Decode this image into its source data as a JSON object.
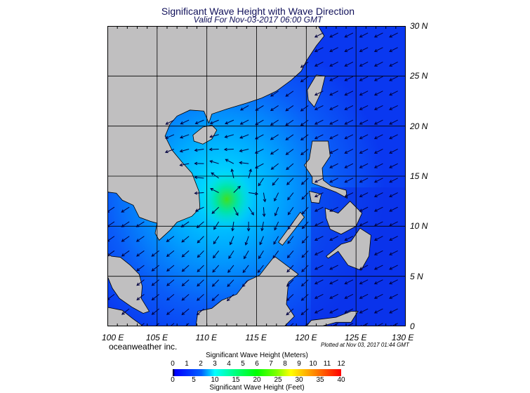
{
  "header": {
    "title": "Significant Wave Height with Wave Direction",
    "subtitle": "Valid For Nov-03-2017 06:00 GMT"
  },
  "map": {
    "lon_range": [
      100,
      130
    ],
    "lat_range": [
      0,
      30
    ],
    "lat_labels": [
      "30 N",
      "25 N",
      "20 N",
      "15 N",
      "10 N",
      "5 N",
      "0"
    ],
    "lon_labels": [
      "100 E",
      "105 E",
      "110 E",
      "115 E",
      "120 E",
      "125 E",
      "130 E"
    ],
    "colors": {
      "land": "#c0bfc0",
      "ocean_low": "#0a3cf0",
      "ocean_mid": "#00c8ff",
      "peak": "#20e030",
      "arrow": "#000040"
    },
    "wave_peak": {
      "lon": 112,
      "lat": 12.7,
      "height_m": 6
    }
  },
  "footer": {
    "brand": "oceanweather inc.",
    "plotted": "Plotted at Nov 03, 2017 01:44 GMT"
  },
  "colorbar": {
    "meters_title": "Significant Wave Height (Meters)",
    "meters_ticks": [
      "0",
      "1",
      "2",
      "3",
      "4",
      "5",
      "6",
      "7",
      "8",
      "9",
      "10",
      "11",
      "12"
    ],
    "feet_ticks": [
      "0",
      "5",
      "10",
      "15",
      "20",
      "25",
      "30",
      "35",
      "40"
    ],
    "feet_title": "Significant Wave Height (Feet)"
  }
}
